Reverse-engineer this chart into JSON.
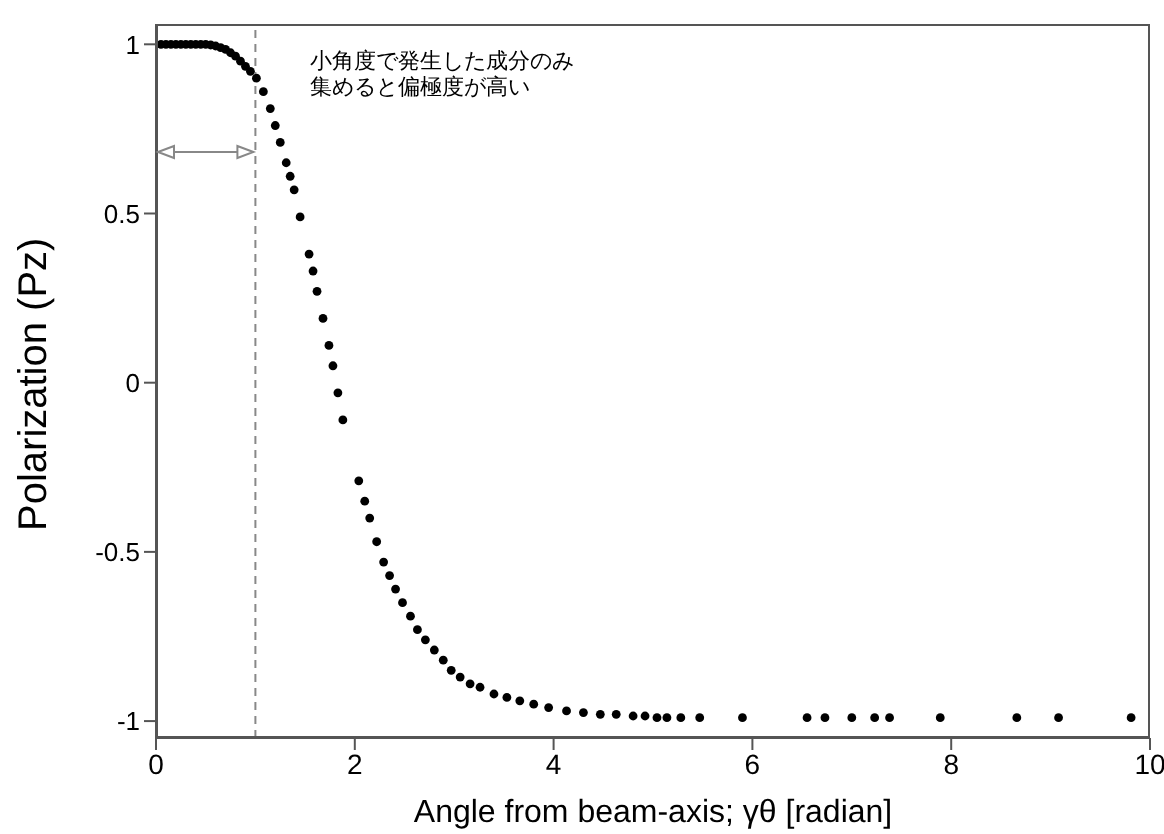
{
  "chart_data": {
    "type": "scatter",
    "xlabel": "Angle from beam-axis; γθ  [radian]",
    "ylabel": "Polarization (Pz)",
    "x": [
      0.05,
      0.1,
      0.15,
      0.2,
      0.25,
      0.3,
      0.35,
      0.4,
      0.45,
      0.5,
      0.55,
      0.6,
      0.65,
      0.7,
      0.75,
      0.8,
      0.85,
      0.9,
      0.95,
      1.01,
      1.08,
      1.15,
      1.2,
      1.25,
      1.31,
      1.35,
      1.39,
      1.45,
      1.54,
      1.58,
      1.62,
      1.68,
      1.74,
      1.78,
      1.83,
      1.88,
      2.04,
      2.1,
      2.15,
      2.22,
      2.29,
      2.35,
      2.41,
      2.48,
      2.56,
      2.63,
      2.71,
      2.8,
      2.89,
      2.97,
      3.06,
      3.16,
      3.26,
      3.4,
      3.53,
      3.66,
      3.8,
      3.95,
      4.13,
      4.3,
      4.47,
      4.63,
      4.8,
      4.92,
      5.04,
      5.14,
      5.28,
      5.47,
      5.9,
      6.55,
      6.73,
      7.0,
      7.23,
      7.38,
      7.89,
      8.66,
      9.08,
      9.81
    ],
    "series": [
      {
        "color": "#000000",
        "values": [
          1,
          1,
          1,
          1,
          1,
          1,
          1,
          1,
          1,
          1,
          0.998,
          0.995,
          0.99,
          0.985,
          0.975,
          0.965,
          0.95,
          0.935,
          0.92,
          0.9,
          0.86,
          0.81,
          0.76,
          0.71,
          0.65,
          0.61,
          0.57,
          0.49,
          0.38,
          0.33,
          0.27,
          0.19,
          0.11,
          0.05,
          -0.03,
          -0.11,
          -0.29,
          -0.35,
          -0.4,
          -0.47,
          -0.53,
          -0.57,
          -0.61,
          -0.65,
          -0.69,
          -0.73,
          -0.76,
          -0.79,
          -0.82,
          -0.85,
          -0.87,
          -0.89,
          -0.9,
          -0.92,
          -0.93,
          -0.94,
          -0.95,
          -0.96,
          -0.97,
          -0.975,
          -0.98,
          -0.98,
          -0.985,
          -0.985,
          -0.99,
          -0.99,
          -0.99,
          -0.99,
          -0.99,
          -0.99,
          -0.99,
          -0.99,
          -0.99,
          -0.99,
          -0.99,
          -0.99,
          -0.99,
          -0.99
        ]
      }
    ],
    "xlim": [
      0,
      10
    ],
    "ylim": [
      -1.05,
      1.06
    ],
    "xticks": [
      0,
      2,
      4,
      6,
      8,
      10
    ],
    "yticks": [
      -1,
      -0.5,
      0,
      0.5,
      1
    ],
    "ref_lines": [
      {
        "axis": "x",
        "value": 1,
        "color": "#888888",
        "line_style": "dashed"
      }
    ],
    "annotations": [
      "小角度で発生した成分のみ",
      "集めると偏極度が高い"
    ],
    "marker": "circle",
    "grid": false,
    "legend": false
  }
}
